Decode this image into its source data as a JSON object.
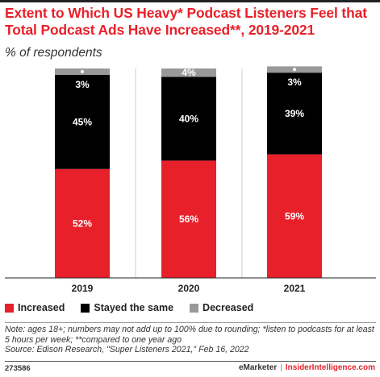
{
  "header": {
    "title": "Extent to Which US Heavy* Podcast Listeners Feel that Total Podcast Ads Have Increased**, 2019-2021",
    "subtitle": "% of respondents"
  },
  "chart_data": {
    "type": "bar",
    "stacked": true,
    "categories": [
      "2019",
      "2020",
      "2021"
    ],
    "series": [
      {
        "name": "Increased",
        "values": [
          52,
          56,
          59
        ],
        "labels": [
          "52%",
          "56%",
          "59%"
        ],
        "color": "#e8202a"
      },
      {
        "name": "Stayed the same",
        "values": [
          45,
          40,
          39
        ],
        "labels": [
          "45%",
          "40%",
          "39%"
        ],
        "color": "#000000"
      },
      {
        "name": "Decreased",
        "values": [
          3,
          4,
          3
        ],
        "labels": [
          "3%",
          "4%",
          "3%"
        ],
        "color": "#999999"
      }
    ],
    "ylim": [
      0,
      100
    ],
    "grid": false,
    "legend_position": "bottom-left"
  },
  "legend": [
    {
      "label": "Increased",
      "color": "#e8202a"
    },
    {
      "label": "Stayed the same",
      "color": "#000000"
    },
    {
      "label": "Decreased",
      "color": "#999999"
    }
  ],
  "note": {
    "line1": "Note: ages 18+; numbers may not add up to 100% due to rounding; *listen to podcasts for at least 5 hours per week; **compared to one year ago",
    "source": "Source: Edison Research, \"Super Listeners 2021,\" Feb 16, 2022"
  },
  "footer": {
    "chart_id": "273586",
    "brand_emarketer": "eMarketer",
    "separator": "|",
    "brand_insider": "InsiderIntelligence.com"
  },
  "colors": {
    "accent": "#e8202a"
  }
}
